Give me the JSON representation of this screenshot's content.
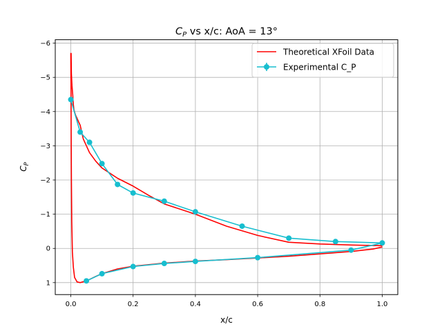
{
  "chart_data": {
    "type": "line",
    "title_prefix": "C",
    "title_sub": "P",
    "title_suffix": " vs x/c: AoA = 13°",
    "xlabel": "x/c",
    "ylabel_main": "C",
    "ylabel_sub": "P",
    "xlim": [
      -0.05,
      1.05
    ],
    "ylim": [
      1.35,
      -6.1
    ],
    "y_inverted": true,
    "grid": true,
    "legend_placement": "top-right",
    "x_ticks": [
      {
        "value": 0.0,
        "label": "0.0"
      },
      {
        "value": 0.2,
        "label": "0.2"
      },
      {
        "value": 0.4,
        "label": "0.4"
      },
      {
        "value": 0.6,
        "label": "0.6"
      },
      {
        "value": 0.8,
        "label": "0.8"
      },
      {
        "value": 1.0,
        "label": "1.0"
      }
    ],
    "y_ticks": [
      {
        "value": -6,
        "label": "−6"
      },
      {
        "value": -5,
        "label": "−5"
      },
      {
        "value": -4,
        "label": "−4"
      },
      {
        "value": -3,
        "label": "−3"
      },
      {
        "value": -2,
        "label": "−2"
      },
      {
        "value": -1,
        "label": "−1"
      },
      {
        "value": 0,
        "label": "0"
      },
      {
        "value": 1,
        "label": "1"
      }
    ],
    "series": [
      {
        "name": "Theoretical XFoil Data",
        "color": "#ff0000",
        "marker": "none",
        "x": [
          1.0,
          0.9,
          0.8,
          0.7,
          0.6,
          0.5,
          0.4,
          0.3,
          0.25,
          0.2,
          0.15,
          0.1,
          0.08,
          0.06,
          0.05,
          0.04,
          0.035,
          0.03,
          0.025,
          0.02,
          0.015,
          0.01,
          0.008,
          0.006,
          0.004,
          0.002,
          0.001,
          0.0,
          0.0005,
          0.001,
          0.002,
          0.003,
          0.005,
          0.008,
          0.012,
          0.02,
          0.03,
          0.05,
          0.08,
          0.1,
          0.15,
          0.2,
          0.3,
          0.4,
          0.5,
          0.6,
          0.7,
          0.8,
          0.9,
          0.97,
          1.0
        ],
        "y": [
          -0.08,
          -0.1,
          -0.13,
          -0.18,
          -0.38,
          -0.65,
          -1.0,
          -1.3,
          -1.55,
          -1.82,
          -2.05,
          -2.35,
          -2.55,
          -2.8,
          -3.0,
          -3.2,
          -3.4,
          -3.6,
          -3.7,
          -3.8,
          -3.9,
          -4.05,
          -4.2,
          -4.5,
          -4.75,
          -5.1,
          -5.7,
          -5.7,
          -4.8,
          -3.6,
          -2.0,
          -0.8,
          0.1,
          0.55,
          0.85,
          0.98,
          1.0,
          0.95,
          0.82,
          0.74,
          0.6,
          0.52,
          0.43,
          0.37,
          0.33,
          0.28,
          0.23,
          0.16,
          0.09,
          0.02,
          -0.04
        ]
      },
      {
        "name": "Experimental C_P",
        "color": "#17becf",
        "marker": "circle",
        "error_bars": true,
        "x": [
          0.0,
          0.03,
          0.06,
          0.1,
          0.15,
          0.2,
          0.3,
          0.4,
          0.55,
          0.7,
          0.85,
          1.0,
          0.9,
          0.6,
          0.4,
          0.3,
          0.2,
          0.1,
          0.05
        ],
        "y": [
          -4.35,
          -3.4,
          -3.1,
          -2.48,
          -1.87,
          -1.62,
          -1.38,
          -1.07,
          -0.65,
          -0.3,
          -0.2,
          -0.16,
          0.05,
          0.27,
          0.38,
          0.44,
          0.53,
          0.74,
          0.95
        ]
      }
    ]
  }
}
